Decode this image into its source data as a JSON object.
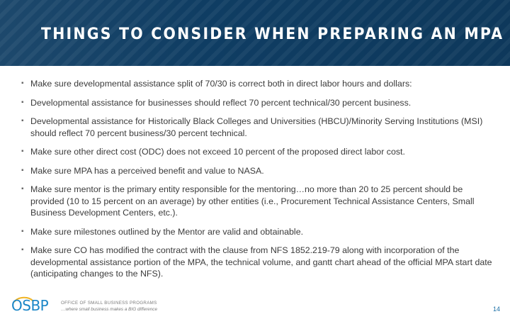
{
  "slide": {
    "title": "THINGS TO CONSIDER WHEN PREPARING AN MPA",
    "bullets": [
      "Make sure developmental assistance split of 70/30 is correct both in direct labor hours and dollars:",
      "Developmental assistance for businesses should reflect 70 percent technical/30 percent business.",
      "Developmental assistance for Historically Black Colleges and Universities (HBCU)/Minority Serving Institutions (MSI) should reflect 70 percent business/30 percent technical.",
      "Make sure other direct cost (ODC) does not exceed 10 percent of the proposed direct labor cost.",
      "Make sure MPA has a perceived benefit and value to NASA.",
      "Make sure mentor is the primary entity responsible for the mentoring…no more than 20 to 25 percent should be provided (10 to 15 percent on an average) by other entities (i.e., Procurement Technical Assistance Centers, Small Business Development Centers, etc.).",
      "Make sure milestones outlined by the Mentor are valid and obtainable.",
      "Make sure CO has modified the contract with the clause from NFS 1852.219-79 along with incorporation of the developmental assistance portion of the MPA, the technical volume, and gantt chart ahead of the official MPA start date (anticipating changes to the NFS)."
    ],
    "bullet_marker": "▪",
    "page_number": "14"
  },
  "footer": {
    "logo_text": "OSBP",
    "logo_line1": "OFFICE OF SMALL BUSINESS PROGRAMS",
    "logo_line2": "…where small business makes a BIG difference"
  },
  "colors": {
    "header_bg": "#0f3d63",
    "title_text": "#ffffff",
    "body_text": "#3b3b3b",
    "logo_blue": "#1a86c7"
  }
}
